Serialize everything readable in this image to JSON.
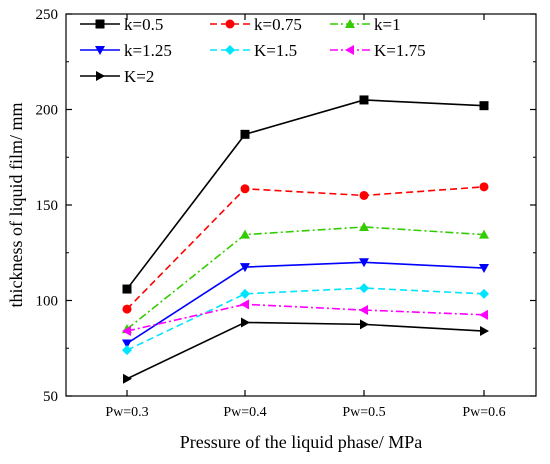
{
  "chart_data": {
    "type": "line",
    "title": "",
    "xlabel": "Pressure of the liquid phase/ MPa",
    "ylabel": "thickness of liquid film/ mm",
    "categories": [
      "Pw=0.3",
      "Pw=0.4",
      "Pw=0.5",
      "Pw=0.6"
    ],
    "ylim": [
      50,
      250
    ],
    "yticks": [
      "50",
      "100",
      "150",
      "200",
      "250"
    ],
    "grid": false,
    "legend_position": "top",
    "series": [
      {
        "name": "k=0.5",
        "values": [
          106,
          187,
          205,
          202
        ],
        "color": "#000000",
        "line": "solid",
        "marker": "square"
      },
      {
        "name": "k=0.75",
        "values": [
          95.5,
          158.5,
          155,
          159.5
        ],
        "color": "#ff0000",
        "line": "dashed",
        "marker": "circle"
      },
      {
        "name": "k=1",
        "values": [
          85,
          134.5,
          138.5,
          134.5
        ],
        "color": "#33cc00",
        "line": "dashdot",
        "marker": "triangle-up"
      },
      {
        "name": "k=1.25",
        "values": [
          77.5,
          117.5,
          120,
          117
        ],
        "color": "#0000ff",
        "line": "solid",
        "marker": "triangle-down"
      },
      {
        "name": "K=1.5",
        "values": [
          74,
          103.5,
          106.5,
          103.5
        ],
        "color": "#00e5ff",
        "line": "dashed",
        "marker": "diamond"
      },
      {
        "name": "K=1.75",
        "values": [
          84,
          98,
          95,
          92.5
        ],
        "color": "#ff00ff",
        "line": "dashdot",
        "marker": "triangle-left"
      },
      {
        "name": "K=2",
        "values": [
          59,
          88.5,
          87.5,
          84
        ],
        "color": "#000000",
        "line": "solid",
        "marker": "triangle-right"
      }
    ]
  }
}
